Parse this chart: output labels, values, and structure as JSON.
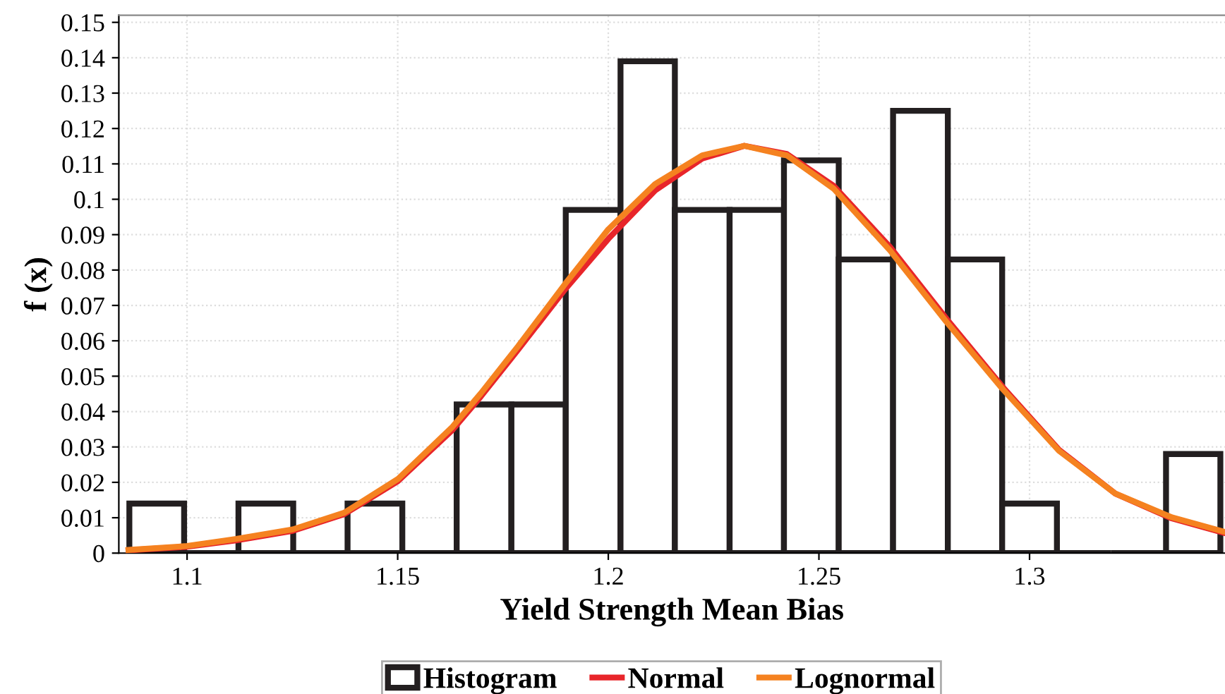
{
  "chart_data": {
    "type": "histogram",
    "xlabel": "Yield Strength Mean Bias",
    "ylabel": "f (x)",
    "bins": [
      1.0863,
      1.0993,
      1.1122,
      1.1252,
      1.1381,
      1.1511,
      1.164,
      1.177,
      1.1899,
      1.2029,
      1.2158,
      1.2288,
      1.2417,
      1.2547,
      1.2676,
      1.2806,
      1.2935,
      1.3065,
      1.3194,
      1.3324,
      1.3453
    ],
    "series": [
      {
        "name": "Histogram",
        "color": "#231f20",
        "values": [
          0.014,
          0,
          0.014,
          0,
          0.014,
          0,
          0.042,
          0.042,
          0.097,
          0.139,
          0.097,
          0.097,
          0.111,
          0.083,
          0.125,
          0.083,
          0.014,
          0,
          0,
          0.028
        ]
      },
      {
        "name": "Normal",
        "type": "line",
        "color": "#e8252a",
        "x": [
          1.0861,
          1.1,
          1.1117,
          1.1251,
          1.1373,
          1.15,
          1.163,
          1.1697,
          1.1786,
          1.1897,
          1.2,
          1.2111,
          1.2223,
          1.2323,
          1.2424,
          1.2535,
          1.2669,
          1.2803,
          1.2936,
          1.307,
          1.3204,
          1.3338,
          1.346
        ],
        "values": [
          0.0008,
          0.0018,
          0.0036,
          0.0063,
          0.011,
          0.0203,
          0.0348,
          0.0442,
          0.0575,
          0.0745,
          0.0888,
          0.1025,
          0.1115,
          0.1151,
          0.1128,
          0.1038,
          0.0865,
          0.0662,
          0.047,
          0.0292,
          0.0168,
          0.0098,
          0.0058
        ]
      },
      {
        "name": "Lognormal",
        "type": "line",
        "color": "#f58220",
        "x": [
          1.0861,
          1.1,
          1.1117,
          1.1251,
          1.1373,
          1.15,
          1.163,
          1.1697,
          1.1786,
          1.1897,
          1.2,
          1.2111,
          1.2223,
          1.2323,
          1.2424,
          1.2535,
          1.2669,
          1.2803,
          1.2936,
          1.307,
          1.3204,
          1.3338,
          1.346
        ],
        "values": [
          0.0009,
          0.002,
          0.004,
          0.0067,
          0.0114,
          0.0209,
          0.0357,
          0.0451,
          0.0585,
          0.076,
          0.0915,
          0.1043,
          0.1124,
          0.1151,
          0.1124,
          0.103,
          0.0855,
          0.0653,
          0.0464,
          0.0289,
          0.0168,
          0.0101,
          0.0061
        ]
      }
    ],
    "xlim": [
      1.0838,
      1.3464
    ],
    "ylim": [
      0,
      0.152
    ],
    "xticks": [
      1.1,
      1.15,
      1.2,
      1.25,
      1.3
    ],
    "yticks": [
      0,
      0.01,
      0.02,
      0.03,
      0.04,
      0.05,
      0.06,
      0.07,
      0.08,
      0.09,
      0.1,
      0.11,
      0.12,
      0.13,
      0.14,
      0.15
    ],
    "grid": true,
    "legend": "bottom",
    "marker": "none",
    "line_style": "solid"
  }
}
